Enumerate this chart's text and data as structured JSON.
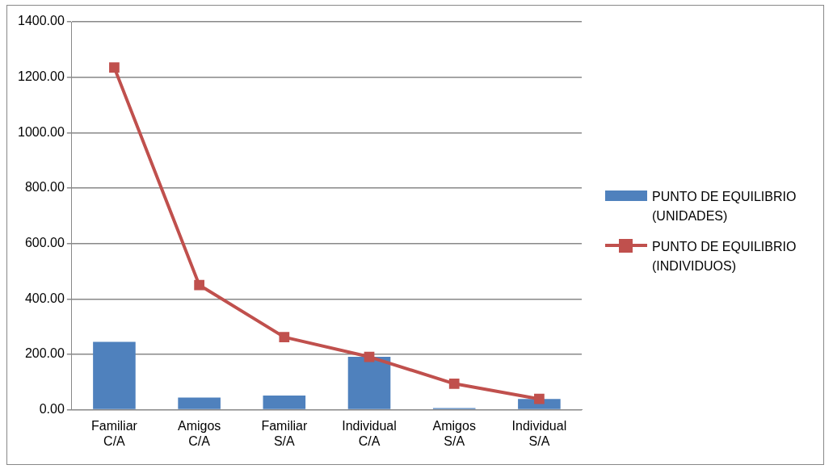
{
  "chart_data": {
    "type": "bar",
    "categories": [
      "Familiar C/A",
      "Amigos C/A",
      "Familiar S/A",
      "Individual C/A",
      "Amigos S/A",
      "Individual S/A"
    ],
    "series": [
      {
        "name": "PUNTO DE EQUILIBRIO (UNIDADES)",
        "color": "#4f81bd",
        "values": [
          245,
          44,
          51,
          191,
          6,
          39
        ]
      },
      {
        "name": "PUNTO DE EQUILIBRIO (INDIVIDUOS)",
        "type": "line",
        "color": "#c0504d",
        "values": [
          1235,
          450,
          262,
          191,
          94,
          39
        ]
      }
    ],
    "ylim": [
      0,
      1400
    ],
    "yticks": [
      {
        "value": 0,
        "label": "0.00"
      },
      {
        "value": 200,
        "label": "200.00"
      },
      {
        "value": 400,
        "label": "400.00"
      },
      {
        "value": 600,
        "label": "600.00"
      },
      {
        "value": 800,
        "label": "800.00"
      },
      {
        "value": 1000,
        "label": "1000.00"
      },
      {
        "value": 1200,
        "label": "1200.00"
      },
      {
        "value": 1400,
        "label": "1400.00"
      }
    ],
    "grid": "y",
    "legend": "right",
    "marker": "square",
    "line_style": "solid"
  }
}
